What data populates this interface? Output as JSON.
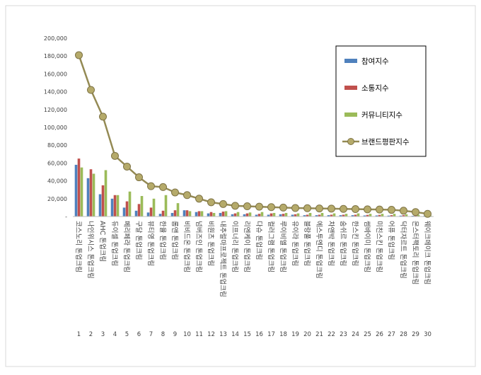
{
  "chart_data": {
    "type": "bar",
    "title": "",
    "xlabel": "",
    "ylabel": "",
    "ylim": [
      0,
      200000
    ],
    "yticks": [
      "-",
      "20,000",
      "40,000",
      "60,000",
      "80,000",
      "100,000",
      "120,000",
      "140,000",
      "160,000",
      "180,000",
      "200,000"
    ],
    "grid": false,
    "legend_position": "top-right",
    "ranks": [
      "1",
      "2",
      "3",
      "4",
      "5",
      "6",
      "7",
      "8",
      "9",
      "10",
      "11",
      "12",
      "13",
      "14",
      "15",
      "16",
      "17",
      "18",
      "19",
      "20",
      "21",
      "22",
      "23",
      "24",
      "25",
      "26",
      "27",
      "28",
      "29",
      "30"
    ],
    "categories": [
      "코스노리 톤업크림",
      "나인위시스 톤업크림",
      "AHC 톤업크림",
      "듀이셀 톤업크림",
      "페리페라 톤업크림",
      "구달 톤업크림",
      "뷰티영 톤업크림",
      "한율 톤업크림",
      "롬앤 톤업크림",
      "비비드온 톤업크림",
      "넘버즈인 톤업크림",
      "비원츠 톤업크림",
      "내추럴마프로젝트 톤업크림",
      "이프너리 톤업크림",
      "리엔케이 톤업크림",
      "다슈 톤업크림",
      "컬러그램 톤업크림",
      "루이비엘 톤업크림",
      "유이라 톤업크림",
      "블랑풀 톤업크림",
      "에스투엔디 톤업크림",
      "차앤박 톤업크림",
      "숨쉬르 톤업크림",
      "한스킨 톤업크림",
      "썸바이미 톤업크림",
      "미친스킨 톤업크림",
      "어퓨 톤업크림",
      "닥터자르트 톤업크림",
      "몬스터팩토리 톤업크림",
      "웨이크메이크 톤업크림"
    ],
    "series": [
      {
        "name": "참여지수",
        "type": "bar",
        "color": "#4f81bd",
        "values": [
          58000,
          43000,
          25000,
          20000,
          10000,
          6500,
          4500,
          3000,
          4000,
          7000,
          5000,
          3500,
          4000,
          2500,
          2500,
          2000,
          2000,
          2500,
          2000,
          1500,
          1500,
          1500,
          1500,
          1500,
          1200,
          1200,
          1000,
          1000,
          800,
          800
        ]
      },
      {
        "name": "소통지수",
        "type": "bar",
        "color": "#c0504d",
        "values": [
          65000,
          53000,
          35000,
          24000,
          17000,
          14000,
          10000,
          6500,
          7000,
          7000,
          6000,
          5000,
          5500,
          3500,
          3500,
          3000,
          3500,
          3000,
          2500,
          2000,
          2000,
          2000,
          2000,
          2000,
          1800,
          1800,
          1500,
          1500,
          1000,
          1000
        ]
      },
      {
        "name": "커뮤니티지수",
        "type": "bar",
        "color": "#9bbb59",
        "values": [
          55000,
          48000,
          52000,
          24000,
          28000,
          23000,
          20000,
          24000,
          15000,
          6000,
          6000,
          4000,
          6000,
          5000,
          4500,
          5000,
          4000,
          4000,
          3500,
          4000,
          4000,
          3500,
          3000,
          3500,
          3000,
          3000,
          3000,
          2500,
          2000,
          1000
        ]
      },
      {
        "name": "브랜드평판지수",
        "type": "line",
        "color": "#948a54",
        "values": [
          181000,
          142000,
          112000,
          68000,
          56000,
          44000,
          34000,
          33000,
          27000,
          24000,
          20000,
          16000,
          14000,
          12000,
          11500,
          11000,
          10500,
          10000,
          9500,
          9300,
          9000,
          8800,
          8500,
          8300,
          8000,
          7800,
          7500,
          6500,
          5000,
          3000
        ]
      }
    ]
  }
}
